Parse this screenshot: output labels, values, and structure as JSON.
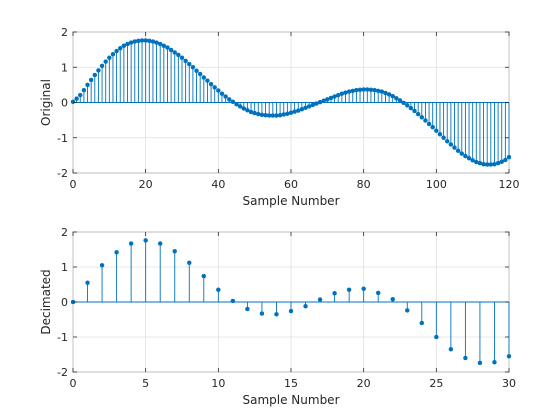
{
  "chart_data": [
    {
      "type": "stem",
      "xlabel": "Sample Number",
      "ylabel": "Original",
      "xlim": [
        0,
        120
      ],
      "ylim": [
        -2,
        2
      ],
      "xticks": [
        "0",
        "20",
        "40",
        "60",
        "80",
        "100",
        "120"
      ],
      "yticks": [
        "-2",
        "-1",
        "0",
        "1",
        "2"
      ],
      "grid": true,
      "color": "#0072BD",
      "series": [
        {
          "x": [
            0,
            1,
            2,
            3,
            4,
            5,
            6,
            7,
            8,
            9,
            10,
            11,
            12,
            13,
            14,
            15,
            16,
            17,
            18,
            19,
            20,
            21,
            22,
            23,
            24,
            25,
            26,
            27,
            28,
            29,
            30,
            31,
            32,
            33,
            34,
            35,
            36,
            37,
            38,
            39,
            40,
            41,
            42,
            43,
            44,
            45,
            46,
            47,
            48,
            49,
            50,
            51,
            52,
            53,
            54,
            55,
            56,
            57,
            58,
            59,
            60,
            61,
            62,
            63,
            64,
            65,
            66,
            67,
            68,
            69,
            70,
            71,
            72,
            73,
            74,
            75,
            76,
            77,
            78,
            79,
            80,
            81,
            82,
            83,
            84,
            85,
            86,
            87,
            88,
            89,
            90,
            91,
            92,
            93,
            94,
            95,
            96,
            97,
            98,
            99,
            100,
            101,
            102,
            103,
            104,
            105,
            106,
            107,
            108,
            109,
            110,
            111,
            112,
            113,
            114,
            115,
            116,
            117,
            118,
            119,
            120
          ],
          "y": [
            0.02,
            0.11,
            0.21,
            0.35,
            0.5,
            0.64,
            0.78,
            0.91,
            1.04,
            1.16,
            1.27,
            1.37,
            1.46,
            1.54,
            1.61,
            1.66,
            1.7,
            1.73,
            1.75,
            1.76,
            1.76,
            1.75,
            1.73,
            1.7,
            1.66,
            1.61,
            1.56,
            1.49,
            1.42,
            1.35,
            1.27,
            1.18,
            1.09,
            1.0,
            0.9,
            0.81,
            0.71,
            0.62,
            0.52,
            0.43,
            0.34,
            0.25,
            0.17,
            0.09,
            0.02,
            -0.05,
            -0.11,
            -0.17,
            -0.22,
            -0.27,
            -0.3,
            -0.33,
            -0.35,
            -0.36,
            -0.37,
            -0.37,
            -0.37,
            -0.36,
            -0.34,
            -0.32,
            -0.29,
            -0.26,
            -0.23,
            -0.19,
            -0.15,
            -0.11,
            -0.07,
            -0.03,
            0.01,
            0.05,
            0.09,
            0.13,
            0.17,
            0.21,
            0.25,
            0.28,
            0.31,
            0.33,
            0.35,
            0.36,
            0.37,
            0.37,
            0.36,
            0.35,
            0.33,
            0.31,
            0.27,
            0.23,
            0.18,
            0.12,
            0.06,
            -0.01,
            -0.08,
            -0.16,
            -0.24,
            -0.33,
            -0.42,
            -0.51,
            -0.61,
            -0.7,
            -0.8,
            -0.9,
            -1.0,
            -1.1,
            -1.19,
            -1.28,
            -1.37,
            -1.45,
            -1.52,
            -1.58,
            -1.64,
            -1.69,
            -1.72,
            -1.75,
            -1.76,
            -1.76,
            -1.75,
            -1.72,
            -1.68,
            -1.63,
            -1.55
          ]
        }
      ]
    },
    {
      "type": "stem",
      "xlabel": "Sample Number",
      "ylabel": "Decimated",
      "xlim": [
        0,
        30
      ],
      "ylim": [
        -2,
        2
      ],
      "xticks": [
        "0",
        "5",
        "10",
        "15",
        "20",
        "25",
        "30"
      ],
      "yticks": [
        "-2",
        "-1",
        "0",
        "1",
        "2"
      ],
      "grid": true,
      "color": "#0072BD",
      "series": [
        {
          "x": [
            0,
            1,
            2,
            3,
            4,
            5,
            6,
            7,
            8,
            9,
            10,
            11,
            12,
            13,
            14,
            15,
            16,
            17,
            18,
            19,
            20,
            21,
            22,
            23,
            24,
            25,
            26,
            27,
            28,
            29,
            30
          ],
          "y": [
            0.0,
            0.55,
            1.05,
            1.42,
            1.67,
            1.76,
            1.67,
            1.45,
            1.12,
            0.74,
            0.35,
            0.03,
            -0.2,
            -0.33,
            -0.35,
            -0.26,
            -0.12,
            0.07,
            0.25,
            0.35,
            0.38,
            0.26,
            0.08,
            -0.24,
            -0.6,
            -1.0,
            -1.35,
            -1.6,
            -1.74,
            -1.72,
            -1.55
          ]
        }
      ]
    }
  ]
}
